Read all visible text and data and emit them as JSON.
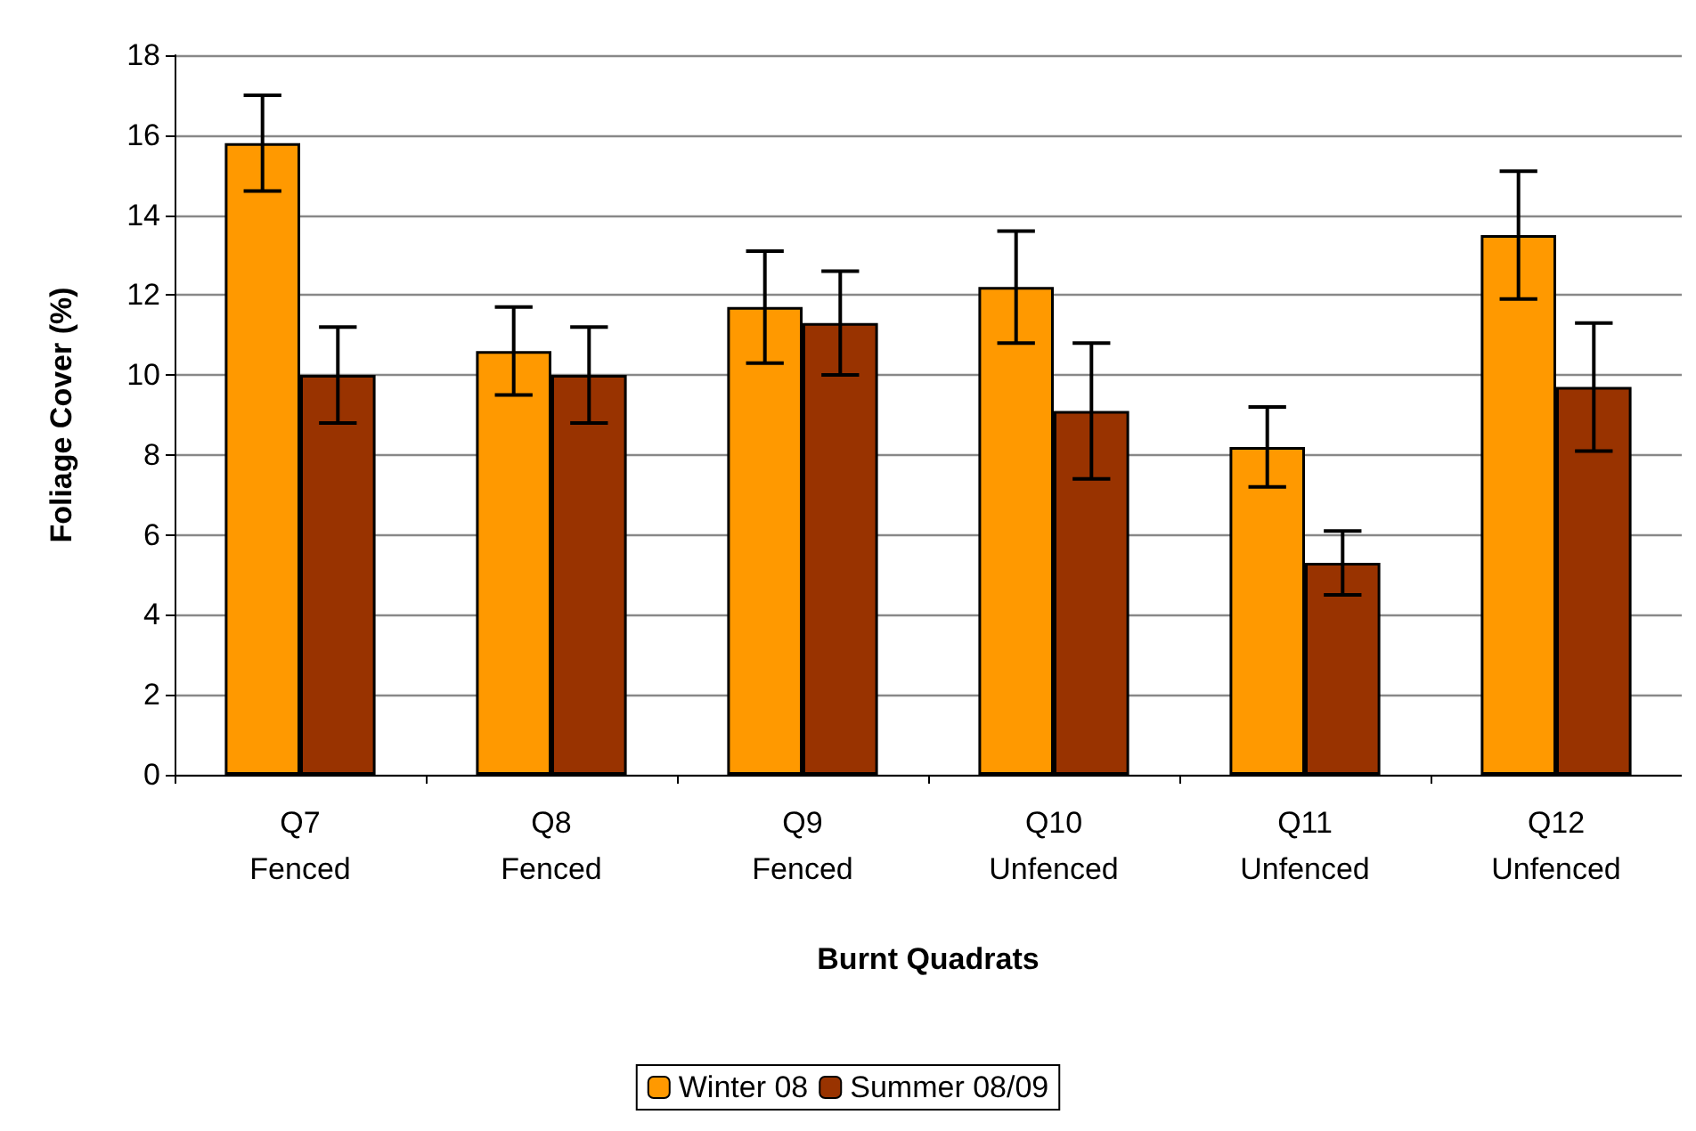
{
  "chart_data": {
    "type": "bar",
    "xlabel": "Burnt Quadrats",
    "ylabel": "Foliage Cover (%)",
    "categories": [
      "Q7\nFenced",
      "Q8\nFenced",
      "Q9\nFenced",
      "Q10\nUnfenced",
      "Q11\nUnfenced",
      "Q12\nUnfenced"
    ],
    "series": [
      {
        "name": "Winter 08",
        "color": "#ff9900",
        "values": [
          15.8,
          10.6,
          11.7,
          12.2,
          8.2,
          13.5
        ],
        "errors": [
          1.2,
          1.1,
          1.4,
          1.4,
          1.0,
          1.6
        ]
      },
      {
        "name": "Summer 08/09",
        "color": "#993300",
        "values": [
          10.0,
          10.0,
          11.3,
          9.1,
          5.3,
          9.7
        ],
        "errors": [
          1.2,
          1.2,
          1.3,
          1.7,
          0.8,
          1.6
        ]
      }
    ],
    "ylim": [
      0,
      18
    ],
    "yticks": [
      0,
      2,
      4,
      6,
      8,
      10,
      12,
      14,
      16,
      18
    ],
    "grid": "y",
    "legend": "bottom"
  }
}
